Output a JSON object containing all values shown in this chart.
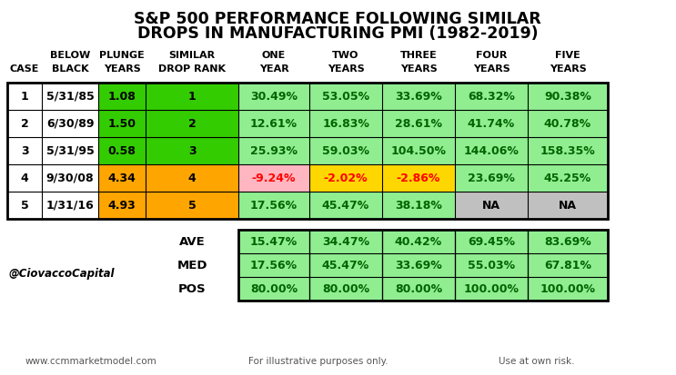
{
  "title_line1": "S&P 500 PERFORMANCE FOLLOWING SIMILAR",
  "title_line2": "DROPS IN MANUFACTURING PMI (1982-2019)",
  "col_headers_line1": [
    "",
    "BELOW",
    "PLUNGE",
    "SIMILAR",
    "ONE",
    "TWO",
    "THREE",
    "FOUR",
    "FIVE"
  ],
  "col_headers_line2": [
    "CASE",
    "BLACK",
    "YEARS",
    "DROP RANK",
    "YEAR",
    "YEARS",
    "YEARS",
    "YEARS",
    "YEARS"
  ],
  "rows": [
    {
      "case": "1",
      "date": "5/31/85",
      "plunge": "1.08",
      "rank": "1",
      "one": "30.49%",
      "two": "53.05%",
      "three": "33.69%",
      "four": "68.32%",
      "five": "90.38%"
    },
    {
      "case": "2",
      "date": "6/30/89",
      "plunge": "1.50",
      "rank": "2",
      "one": "12.61%",
      "two": "16.83%",
      "three": "28.61%",
      "four": "41.74%",
      "five": "40.78%"
    },
    {
      "case": "3",
      "date": "5/31/95",
      "plunge": "0.58",
      "rank": "3",
      "one": "25.93%",
      "two": "59.03%",
      "three": "104.50%",
      "four": "144.06%",
      "five": "158.35%"
    },
    {
      "case": "4",
      "date": "9/30/08",
      "plunge": "4.34",
      "rank": "4",
      "one": "-9.24%",
      "two": "-2.02%",
      "three": "-2.86%",
      "four": "23.69%",
      "five": "45.25%"
    },
    {
      "case": "5",
      "date": "1/31/16",
      "plunge": "4.93",
      "rank": "5",
      "one": "17.56%",
      "two": "45.47%",
      "three": "38.18%",
      "four": "NA",
      "five": "NA"
    }
  ],
  "summary_rows": [
    {
      "label": "AVE",
      "one": "15.47%",
      "two": "34.47%",
      "three": "40.42%",
      "four": "69.45%",
      "five": "83.69%"
    },
    {
      "label": "MED",
      "one": "17.56%",
      "two": "45.47%",
      "three": "33.69%",
      "four": "55.03%",
      "five": "67.81%"
    },
    {
      "label": "POS",
      "one": "80.00%",
      "two": "80.00%",
      "three": "80.00%",
      "four": "100.00%",
      "five": "100.00%"
    }
  ],
  "footer_left": "www.ccmmarketmodel.com",
  "footer_mid": "For illustrative purposes only.",
  "footer_right": "Use at own risk.",
  "watermark": "@CiovaccoCapital",
  "green_bright": "#33CC00",
  "orange": "#FFA500",
  "green_light": "#90EE90",
  "pink": "#FFB6C1",
  "yellow": "#FFD700",
  "gray": "#C0C0C0",
  "plunge_colors": [
    "#33CC00",
    "#33CC00",
    "#33CC00",
    "#FFA500",
    "#FFA500"
  ],
  "rank_colors": [
    "#33CC00",
    "#33CC00",
    "#33CC00",
    "#FFA500",
    "#FFA500"
  ],
  "cell_colors": [
    [
      "#90EE90",
      "#90EE90",
      "#90EE90",
      "#90EE90",
      "#90EE90"
    ],
    [
      "#90EE90",
      "#90EE90",
      "#90EE90",
      "#90EE90",
      "#90EE90"
    ],
    [
      "#90EE90",
      "#90EE90",
      "#90EE90",
      "#90EE90",
      "#90EE90"
    ],
    [
      "#FFB6C1",
      "#FFD700",
      "#FFD700",
      "#90EE90",
      "#90EE90"
    ],
    [
      "#90EE90",
      "#90EE90",
      "#90EE90",
      "#C0C0C0",
      "#C0C0C0"
    ]
  ],
  "text_colors": [
    [
      "#006400",
      "#006400",
      "#006400",
      "#006400",
      "#006400"
    ],
    [
      "#006400",
      "#006400",
      "#006400",
      "#006400",
      "#006400"
    ],
    [
      "#006400",
      "#006400",
      "#006400",
      "#006400",
      "#006400"
    ],
    [
      "#FF0000",
      "#FF0000",
      "#FF0000",
      "#006400",
      "#006400"
    ],
    [
      "#006400",
      "#006400",
      "#006400",
      "#000000",
      "#000000"
    ]
  ]
}
